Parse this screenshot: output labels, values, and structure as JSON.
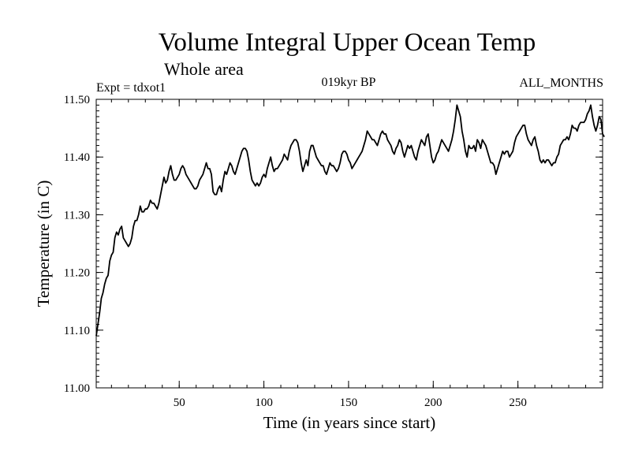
{
  "chart_data": {
    "type": "line",
    "title": "Volume Integral Upper Ocean Temp",
    "subtitle": "Whole area",
    "annotations": {
      "left": "Expt = tdxot1",
      "center": "019kyr BP",
      "right": "ALL_MONTHS"
    },
    "xlabel": "Time (in years since start)",
    "ylabel": "Temperature (in C)",
    "xlim": [
      1,
      300
    ],
    "ylim": [
      11.0,
      11.5
    ],
    "x_ticks": [
      50,
      100,
      150,
      200,
      250
    ],
    "x_tick_labels": [
      "50",
      "100",
      "150",
      "200",
      "250"
    ],
    "y_ticks": [
      11.0,
      11.1,
      11.2,
      11.3,
      11.4,
      11.5
    ],
    "y_tick_labels": [
      "11.00",
      "11.10",
      "11.20",
      "11.30",
      "11.40",
      "11.50"
    ],
    "grid": false,
    "series": [
      {
        "name": "Temperature",
        "color": "#000000",
        "x_start": 1,
        "x_step": 1,
        "values": [
          11.09,
          11.11,
          11.13,
          11.155,
          11.165,
          11.18,
          11.19,
          11.195,
          11.22,
          11.23,
          11.235,
          11.26,
          11.27,
          11.265,
          11.275,
          11.28,
          11.26,
          11.255,
          11.25,
          11.245,
          11.25,
          11.26,
          11.28,
          11.29,
          11.29,
          11.3,
          11.315,
          11.305,
          11.305,
          11.31,
          11.31,
          11.315,
          11.325,
          11.32,
          11.32,
          11.315,
          11.31,
          11.32,
          11.335,
          11.35,
          11.365,
          11.355,
          11.36,
          11.375,
          11.385,
          11.37,
          11.36,
          11.36,
          11.365,
          11.37,
          11.38,
          11.385,
          11.38,
          11.37,
          11.365,
          11.36,
          11.355,
          11.35,
          11.345,
          11.345,
          11.35,
          11.36,
          11.365,
          11.37,
          11.38,
          11.39,
          11.38,
          11.38,
          11.37,
          11.34,
          11.335,
          11.335,
          11.345,
          11.35,
          11.34,
          11.36,
          11.375,
          11.37,
          11.38,
          11.39,
          11.385,
          11.375,
          11.37,
          11.38,
          11.39,
          11.4,
          11.41,
          11.415,
          11.415,
          11.41,
          11.395,
          11.375,
          11.36,
          11.355,
          11.35,
          11.355,
          11.35,
          11.355,
          11.365,
          11.37,
          11.365,
          11.38,
          11.39,
          11.4,
          11.385,
          11.375,
          11.38,
          11.38,
          11.385,
          11.39,
          11.395,
          11.405,
          11.4,
          11.395,
          11.41,
          11.42,
          11.425,
          11.43,
          11.43,
          11.425,
          11.41,
          11.39,
          11.375,
          11.385,
          11.395,
          11.385,
          11.41,
          11.42,
          11.42,
          11.41,
          11.4,
          11.395,
          11.39,
          11.385,
          11.385,
          11.375,
          11.37,
          11.38,
          11.39,
          11.385,
          11.385,
          11.38,
          11.375,
          11.38,
          11.39,
          11.405,
          11.41,
          11.41,
          11.405,
          11.395,
          11.39,
          11.38,
          11.385,
          11.39,
          11.395,
          11.4,
          11.405,
          11.41,
          11.42,
          11.43,
          11.445,
          11.44,
          11.435,
          11.43,
          11.43,
          11.425,
          11.42,
          11.43,
          11.44,
          11.445,
          11.44,
          11.44,
          11.43,
          11.425,
          11.42,
          11.41,
          11.405,
          11.415,
          11.42,
          11.43,
          11.425,
          11.41,
          11.4,
          11.41,
          11.42,
          11.415,
          11.42,
          11.41,
          11.4,
          11.395,
          11.41,
          11.42,
          11.43,
          11.425,
          11.42,
          11.435,
          11.44,
          11.42,
          11.4,
          11.39,
          11.395,
          11.405,
          11.41,
          11.42,
          11.43,
          11.425,
          11.42,
          11.415,
          11.41,
          11.42,
          11.43,
          11.445,
          11.465,
          11.49,
          11.48,
          11.47,
          11.445,
          11.43,
          11.41,
          11.4,
          11.42,
          11.415,
          11.415,
          11.42,
          11.41,
          11.43,
          11.425,
          11.415,
          11.43,
          11.425,
          11.42,
          11.41,
          11.4,
          11.39,
          11.39,
          11.385,
          11.37,
          11.38,
          11.39,
          11.4,
          11.41,
          11.405,
          11.41,
          11.41,
          11.4,
          11.405,
          11.41,
          11.425,
          11.435,
          11.44,
          11.445,
          11.45,
          11.455,
          11.455,
          11.44,
          11.43,
          11.425,
          11.42,
          11.43,
          11.435,
          11.42,
          11.41,
          11.395,
          11.39,
          11.395,
          11.39,
          11.395,
          11.395,
          11.39,
          11.385,
          11.39,
          11.39,
          11.4,
          11.405,
          11.42,
          11.425,
          11.43,
          11.43,
          11.435,
          11.43,
          11.44,
          11.455,
          11.45,
          11.45,
          11.445,
          11.455,
          11.46,
          11.46,
          11.46,
          11.465,
          11.475,
          11.48,
          11.49,
          11.47,
          11.455,
          11.445,
          11.455,
          11.47,
          11.465,
          11.44,
          11.435
        ]
      }
    ]
  }
}
